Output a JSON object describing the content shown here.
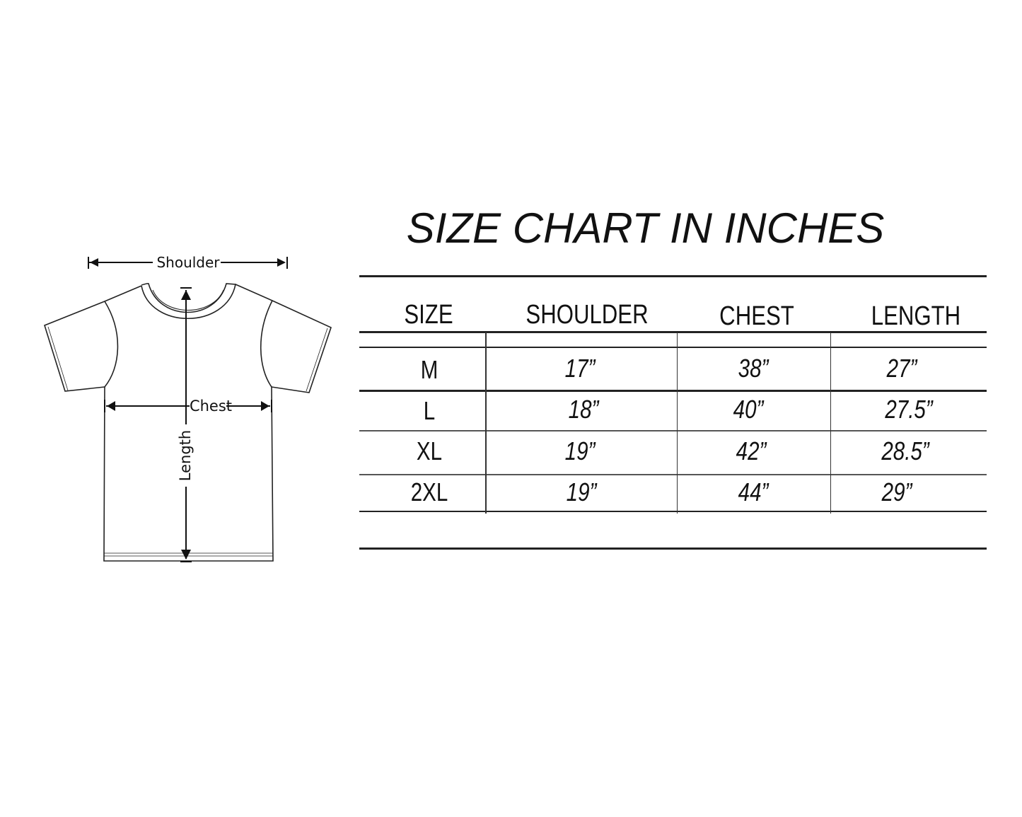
{
  "diagram": {
    "labels": {
      "shoulder": "Shoulder",
      "chest": "Chest",
      "length": "Length"
    }
  },
  "title": "SIZE CHART IN INCHES",
  "table": {
    "headers": [
      "SIZE",
      "SHOULDER",
      "CHEST",
      "LENGTH"
    ],
    "rows": [
      [
        "M",
        "17”",
        "38”",
        "27”"
      ],
      [
        "L",
        "18”",
        "40”",
        "27.5”"
      ],
      [
        "XL",
        "19”",
        "42”",
        "28.5”"
      ],
      [
        "2XL",
        "19”",
        "44”",
        "29”"
      ]
    ]
  }
}
